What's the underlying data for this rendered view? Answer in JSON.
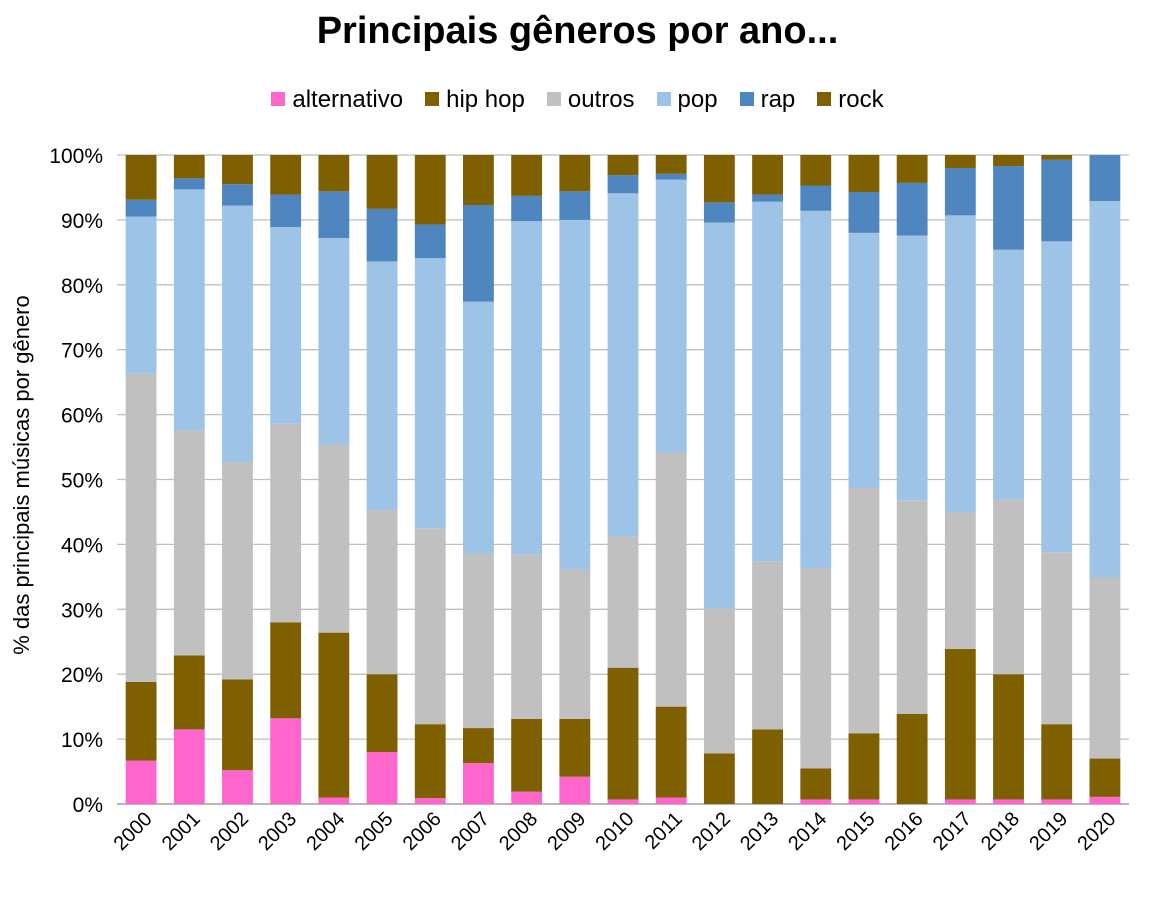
{
  "chart_data": {
    "type": "bar",
    "stacked": true,
    "title": "Principais gêneros por ano...",
    "xlabel": "",
    "ylabel": "% das principais músicas por gênero",
    "ylim": [
      0,
      100
    ],
    "y_ticks": [
      "0%",
      "10%",
      "20%",
      "30%",
      "40%",
      "50%",
      "60%",
      "70%",
      "80%",
      "90%",
      "100%"
    ],
    "grid": true,
    "legend_position": "top",
    "categories": [
      "2000",
      "2001",
      "2002",
      "2003",
      "2004",
      "2005",
      "2006",
      "2007",
      "2008",
      "2009",
      "2010",
      "2011",
      "2012",
      "2013",
      "2014",
      "2015",
      "2016",
      "2017",
      "2018",
      "2019",
      "2020"
    ],
    "series": [
      {
        "name": "alternativo",
        "color": "#ff66cc",
        "values": [
          6.7,
          11.5,
          5.2,
          13.2,
          1.0,
          8.0,
          0.9,
          6.3,
          1.9,
          4.2,
          0.7,
          1.0,
          0.0,
          0.0,
          0.7,
          0.7,
          0.0,
          0.7,
          0.7,
          0.7,
          1.1
        ]
      },
      {
        "name": "hip hop",
        "color": "#7f6000",
        "values": [
          12.1,
          11.4,
          14.0,
          14.8,
          25.4,
          12.0,
          11.4,
          5.4,
          11.2,
          8.9,
          20.3,
          14.0,
          7.8,
          11.5,
          4.8,
          10.2,
          13.9,
          23.2,
          19.3,
          11.6,
          5.9
        ]
      },
      {
        "name": "outros",
        "color": "#c0c0c0",
        "values": [
          47.5,
          34.7,
          33.5,
          30.6,
          29.0,
          25.3,
          30.2,
          26.9,
          25.3,
          23.1,
          20.2,
          39.1,
          22.3,
          25.9,
          30.8,
          37.8,
          32.9,
          21.1,
          26.9,
          26.5,
          27.9
        ]
      },
      {
        "name": "pop",
        "color": "#9dc3e6",
        "values": [
          24.2,
          37.1,
          39.5,
          30.3,
          31.8,
          38.3,
          41.6,
          38.8,
          51.4,
          53.8,
          52.9,
          42.1,
          59.5,
          55.4,
          55.1,
          39.3,
          40.8,
          45.7,
          38.5,
          47.9,
          58.0
        ]
      },
      {
        "name": "rap",
        "color": "#4f86c0",
        "values": [
          2.6,
          1.7,
          3.3,
          5.0,
          7.2,
          8.1,
          5.2,
          14.9,
          3.9,
          4.4,
          2.8,
          0.9,
          3.1,
          1.1,
          3.9,
          6.3,
          8.1,
          7.3,
          12.9,
          12.6,
          7.1
        ]
      },
      {
        "name": "rock",
        "color": "#7f6000",
        "values": [
          6.9,
          3.6,
          4.5,
          6.1,
          5.6,
          8.3,
          10.7,
          7.7,
          6.3,
          5.6,
          3.1,
          2.9,
          7.3,
          6.1,
          4.7,
          5.7,
          4.3,
          2.0,
          1.7,
          0.7,
          0.0
        ]
      }
    ]
  }
}
